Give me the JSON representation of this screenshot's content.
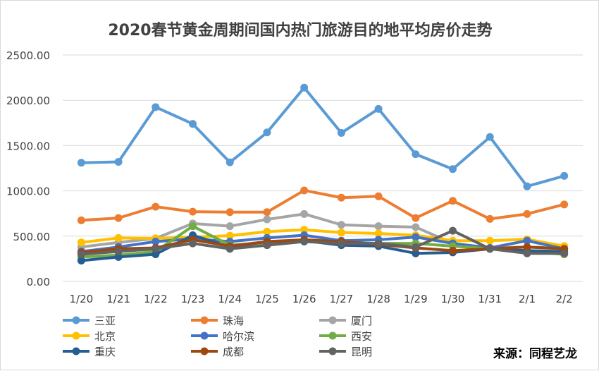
{
  "chart_data": {
    "type": "line",
    "title": "2020春节黄金周期间国内热门旅游目的地平均房价走势",
    "source": "来源：同程艺龙",
    "categories": [
      "1/20",
      "1/21",
      "1/22",
      "1/23",
      "1/24",
      "1/25",
      "1/26",
      "1/27",
      "1/28",
      "1/29",
      "1/30",
      "1/31",
      "2/1",
      "2/2"
    ],
    "ylim": [
      0,
      2500
    ],
    "yticks": [
      "0.00",
      "500.00",
      "1000.00",
      "1500.00",
      "2000.00",
      "2500.00"
    ],
    "grid": true,
    "legend_position": "bottom",
    "series": [
      {
        "name": "三亚",
        "color": "#5b9bd5",
        "values": [
          1310,
          1320,
          1925,
          1740,
          1315,
          1645,
          2140,
          1640,
          1905,
          1405,
          1240,
          1595,
          1050,
          1165
        ]
      },
      {
        "name": "珠海",
        "color": "#ed7d31",
        "values": [
          675,
          700,
          825,
          770,
          765,
          765,
          1005,
          925,
          940,
          700,
          890,
          690,
          745,
          850
        ]
      },
      {
        "name": "厦门",
        "color": "#a5a5a5",
        "values": [
          380,
          430,
          475,
          640,
          610,
          685,
          745,
          625,
          610,
          600,
          420,
          370,
          380,
          365
        ]
      },
      {
        "name": "北京",
        "color": "#ffc000",
        "values": [
          430,
          480,
          475,
          490,
          505,
          550,
          570,
          540,
          530,
          510,
          450,
          450,
          465,
          390
        ]
      },
      {
        "name": "哈尔滨",
        "color": "#4472c4",
        "values": [
          330,
          380,
          440,
          470,
          440,
          480,
          510,
          450,
          460,
          490,
          420,
          370,
          450,
          360
        ]
      },
      {
        "name": "西安",
        "color": "#70ad47",
        "values": [
          270,
          290,
          330,
          610,
          400,
          430,
          450,
          430,
          420,
          420,
          390,
          360,
          330,
          300
        ]
      },
      {
        "name": "重庆",
        "color": "#255e91",
        "values": [
          230,
          270,
          300,
          510,
          380,
          440,
          450,
          400,
          390,
          310,
          320,
          360,
          340,
          330
        ]
      },
      {
        "name": "成都",
        "color": "#9e480e",
        "values": [
          320,
          360,
          370,
          460,
          390,
          440,
          460,
          440,
          410,
          370,
          340,
          360,
          380,
          360
        ]
      },
      {
        "name": "昆明",
        "color": "#636363",
        "values": [
          300,
          330,
          360,
          420,
          360,
          400,
          440,
          420,
          420,
          380,
          560,
          360,
          310,
          310
        ]
      }
    ]
  }
}
